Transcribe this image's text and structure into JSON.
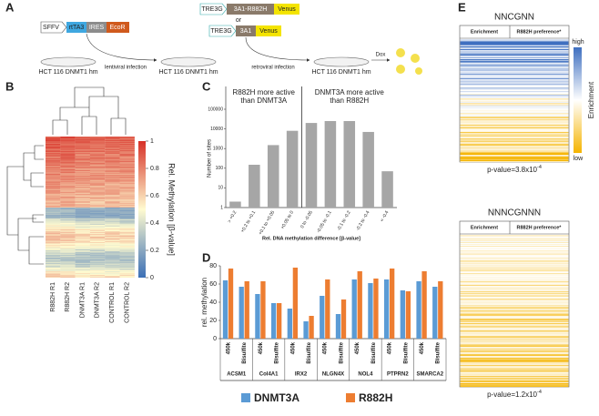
{
  "panel_a": {
    "label": "A",
    "lentiviral_construct": [
      "SFFV",
      "rtTA3",
      "IRES",
      "EcoR"
    ],
    "retroviral_constructs": [
      [
        "TRE3G",
        "3A1-R882H",
        "Venus"
      ],
      [
        "TRE3G",
        "3A1",
        "Venus"
      ]
    ],
    "or": "or",
    "cell_line": "HCT 116 DNMT1 hm",
    "steps": [
      "lentiviral infection",
      "retroviral infection"
    ],
    "treatment": "Dox"
  },
  "panel_b": {
    "label": "B",
    "colorbar_label": "Rel. Methylation [β-value]",
    "colorbar_ticks": [
      1,
      0.8,
      0.6,
      0.4,
      0.2,
      0
    ],
    "columns": [
      "R882H R1",
      "R882H R2",
      "DNMT3A R1",
      "DNMT3A R2",
      "CONTROL R1",
      "CONTROL R2"
    ]
  },
  "chart_data": [
    {
      "label": "C",
      "type": "bar",
      "ylabel": "Number of sites",
      "xlabel": "Rel. DNA methylation difference [β-value]",
      "annotations": [
        [
          "R882H more active",
          "than  DNMT3A"
        ],
        [
          "DNMT3A more active",
          "than R882H"
        ]
      ],
      "categories": [
        "> +0.2",
        "+0.2 to +0.1",
        "+0.1 to +0.05",
        "+0.05 to 0",
        "0 to -0.05",
        "-0.05 to -0.1",
        "-0.1 to -0.2",
        "-0.2 to -0.4",
        "< -0.4"
      ],
      "values": [
        2,
        150,
        1500,
        8000,
        20000,
        25000,
        25000,
        7000,
        70
      ],
      "color": "#a6a6a6",
      "log_scale": true,
      "ylim": [
        1,
        100000
      ],
      "yticks": [
        1,
        10,
        100,
        1000,
        10000,
        100000
      ]
    },
    {
      "label": "D",
      "type": "grouped_bar",
      "ylabel": "rel. methylation",
      "groups": [
        "ACSM1",
        "Col4A1",
        "IRX2",
        "NLGN4X",
        "NOL4",
        "PTPRN2",
        "SMARCA2"
      ],
      "categories": [
        "450k",
        "Bisulfite",
        "450k",
        "Bisulfite",
        "450k",
        "Bisulfite",
        "450k",
        "Bisulfite",
        "450k",
        "Bisulfite",
        "450k",
        "Bisulfite",
        "450k",
        "Bisulfite"
      ],
      "series": [
        {
          "name": "DNMT3A",
          "color": "#5b9bd5",
          "values": [
            64,
            57,
            49,
            39,
            33,
            19,
            47,
            27,
            65,
            61,
            65,
            53,
            63,
            57
          ]
        },
        {
          "name": "R882H",
          "color": "#ed7d31",
          "values": [
            77,
            63,
            63,
            39,
            78,
            25,
            65,
            43,
            74,
            66,
            77,
            52,
            74,
            63
          ]
        }
      ],
      "ylim": [
        0,
        80
      ],
      "yticks": [
        0,
        20,
        40,
        60,
        80
      ]
    }
  ],
  "panel_e": {
    "label": "E",
    "heatmaps": [
      {
        "title": "NNCGNN",
        "columns": [
          "Enrichment",
          "R882H preference*"
        ],
        "p_value": {
          "text": "p-value=3.8x10",
          "exponent": "-4"
        }
      },
      {
        "title": "NNNCGNNN",
        "columns": [
          "Enrichment",
          "R882H preference*"
        ],
        "p_value": {
          "text": "p-value=1.2x10",
          "exponent": "-4"
        }
      }
    ],
    "colorbar": {
      "label": "Enrichment",
      "high": "high",
      "low": "low"
    }
  }
}
